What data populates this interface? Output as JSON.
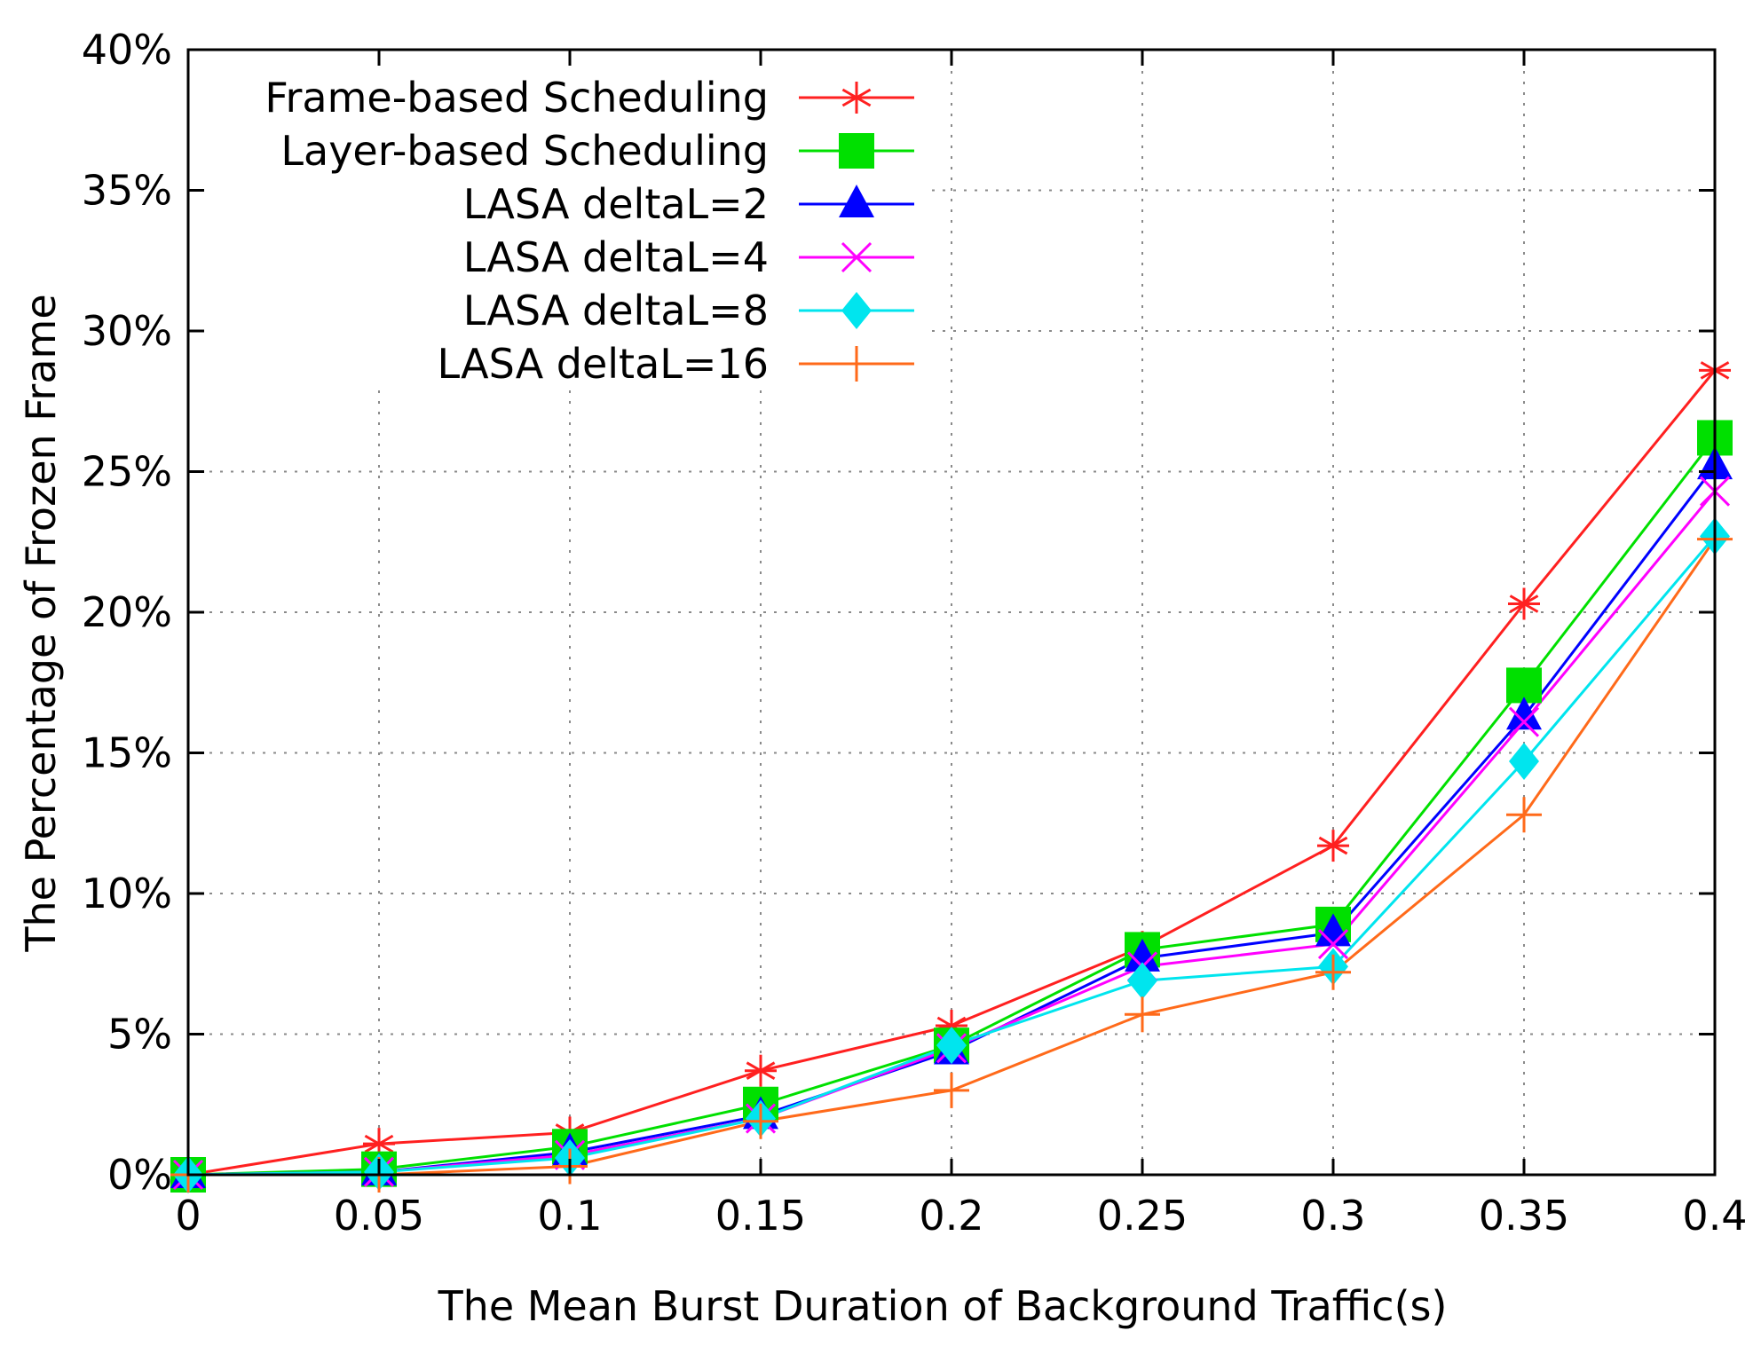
{
  "chart_data": {
    "type": "line",
    "xlabel": "The Mean Burst Duration of Background Traffic(s)",
    "ylabel": "The Percentage of Frozen Frame",
    "x": [
      0,
      0.05,
      0.1,
      0.15,
      0.2,
      0.25,
      0.3,
      0.35,
      0.4
    ],
    "x_tick_labels": [
      "0",
      "0.05",
      "0.1",
      "0.15",
      "0.2",
      "0.25",
      "0.3",
      "0.35",
      "0.4"
    ],
    "y_ticks": [
      0,
      5,
      10,
      15,
      20,
      25,
      30,
      35,
      40
    ],
    "y_tick_labels": [
      "0%",
      "5%",
      "10%",
      "15%",
      "20%",
      "25%",
      "30%",
      "35%",
      "40%"
    ],
    "xlim": [
      0,
      0.4
    ],
    "ylim": [
      0,
      40
    ],
    "grid": true,
    "legend_position": "top-left",
    "series": [
      {
        "name": "Frame-based Scheduling",
        "color": "#ff2020",
        "marker": "asterisk",
        "values": [
          0,
          1.1,
          1.5,
          3.7,
          5.3,
          8.1,
          11.7,
          20.3,
          28.6
        ]
      },
      {
        "name": "Layer-based Scheduling",
        "color": "#00e000",
        "marker": "square",
        "values": [
          0,
          0.2,
          1.0,
          2.5,
          4.6,
          8.0,
          8.9,
          17.4,
          26.2
        ]
      },
      {
        "name": "LASA deltaL=2",
        "color": "#0000ff",
        "marker": "triangle",
        "values": [
          0,
          0.1,
          0.8,
          2.1,
          4.4,
          7.7,
          8.6,
          16.3,
          25.2
        ]
      },
      {
        "name": "LASA deltaL=4",
        "color": "#ff00ff",
        "marker": "x",
        "values": [
          0,
          0.1,
          0.7,
          2.0,
          4.5,
          7.4,
          8.2,
          16.1,
          24.3
        ]
      },
      {
        "name": "LASA deltaL=8",
        "color": "#00e5ee",
        "marker": "diamond",
        "values": [
          0,
          0.1,
          0.6,
          2.0,
          4.6,
          6.9,
          7.4,
          14.7,
          22.7
        ]
      },
      {
        "name": "LASA deltaL=16",
        "color": "#ff6a1a",
        "marker": "plus",
        "values": [
          0,
          0.0,
          0.3,
          1.9,
          3.0,
          5.7,
          7.2,
          12.8,
          22.6
        ]
      }
    ]
  }
}
